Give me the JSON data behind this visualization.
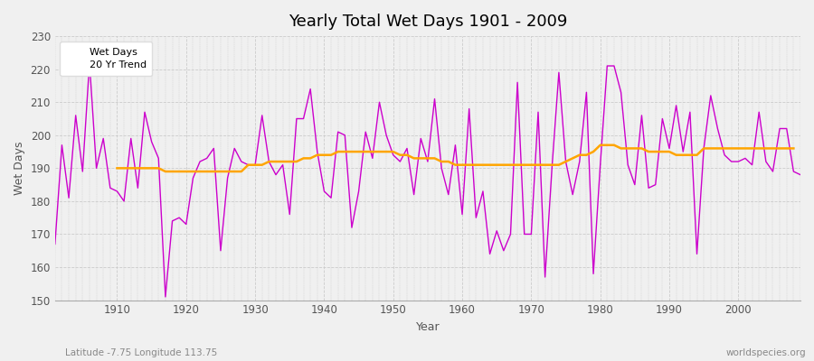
{
  "title": "Yearly Total Wet Days 1901 - 2009",
  "xlabel": "Year",
  "ylabel": "Wet Days",
  "xlim": [
    1901,
    2009
  ],
  "ylim": [
    150,
    230
  ],
  "yticks": [
    150,
    160,
    170,
    180,
    190,
    200,
    210,
    220,
    230
  ],
  "background_color": "#f0f0f0",
  "plot_bg_color": "#f0f0f0",
  "wet_days_color": "#cc00cc",
  "trend_color": "#ffa500",
  "wet_days_label": "Wet Days",
  "trend_label": "20 Yr Trend",
  "subtitle_left": "Latitude -7.75 Longitude 113.75",
  "subtitle_right": "worldspecies.org",
  "wet_days": [
    167,
    197,
    181,
    206,
    189,
    222,
    190,
    199,
    184,
    183,
    180,
    199,
    184,
    207,
    198,
    193,
    151,
    174,
    175,
    173,
    187,
    192,
    193,
    196,
    165,
    187,
    196,
    192,
    191,
    191,
    206,
    192,
    188,
    191,
    176,
    205,
    205,
    214,
    195,
    183,
    181,
    201,
    200,
    172,
    183,
    201,
    193,
    210,
    200,
    194,
    192,
    196,
    182,
    199,
    192,
    211,
    190,
    182,
    197,
    176,
    208,
    175,
    183,
    164,
    171,
    165,
    170,
    216,
    170,
    170,
    207,
    157,
    190,
    219,
    192,
    182,
    192,
    213,
    158,
    191,
    221,
    221,
    213,
    191,
    185,
    206,
    184,
    185,
    205,
    196,
    209,
    195,
    207,
    164,
    196,
    212,
    202,
    194,
    192,
    192,
    193,
    191,
    207,
    192,
    189,
    202,
    202,
    189,
    188
  ],
  "trend_years": [
    1901,
    1902,
    1903,
    1904,
    1905,
    1906,
    1907,
    1908,
    1909,
    1910,
    1911,
    1912,
    1913,
    1914,
    1915,
    1916,
    1917,
    1918,
    1919,
    1920,
    1921,
    1922,
    1923,
    1924,
    1925,
    1926,
    1927,
    1928,
    1929,
    1930,
    1931,
    1932,
    1933,
    1934,
    1935,
    1936,
    1937,
    1938,
    1939,
    1940,
    1941,
    1942,
    1943,
    1944,
    1945,
    1946,
    1947,
    1948,
    1949,
    1950,
    1951,
    1952,
    1953,
    1954,
    1955,
    1956,
    1957,
    1958,
    1959,
    1960,
    1961,
    1962,
    1963,
    1964,
    1965,
    1966,
    1967,
    1968,
    1969,
    1970,
    1971,
    1972,
    1973,
    1974,
    1975,
    1976,
    1977,
    1978,
    1979,
    1980,
    1981,
    1982,
    1983,
    1984,
    1985,
    1986,
    1987,
    1988,
    1989,
    1990,
    1991,
    1992,
    1993,
    1994,
    1995,
    1996,
    1997,
    1998,
    1999,
    2000,
    2001,
    2002,
    2003,
    2004,
    2005,
    2006,
    2007,
    2008,
    2009
  ],
  "trend_values": [
    null,
    null,
    null,
    null,
    null,
    null,
    null,
    null,
    null,
    190,
    190,
    190,
    190,
    190,
    190,
    190,
    189,
    189,
    189,
    189,
    189,
    189,
    189,
    189,
    189,
    189,
    189,
    189,
    191,
    191,
    191,
    192,
    192,
    192,
    192,
    192,
    193,
    193,
    194,
    194,
    194,
    195,
    195,
    195,
    195,
    195,
    195,
    195,
    195,
    195,
    194,
    194,
    193,
    193,
    193,
    193,
    192,
    192,
    191,
    191,
    191,
    191,
    191,
    191,
    191,
    191,
    191,
    191,
    191,
    191,
    191,
    191,
    191,
    191,
    192,
    193,
    194,
    194,
    195,
    197,
    197,
    197,
    196,
    196,
    196,
    196,
    195,
    195,
    195,
    195,
    194,
    194,
    194,
    194,
    196,
    196,
    196,
    196,
    196,
    196,
    196,
    196,
    196,
    196,
    196,
    196,
    196,
    196,
    null
  ]
}
